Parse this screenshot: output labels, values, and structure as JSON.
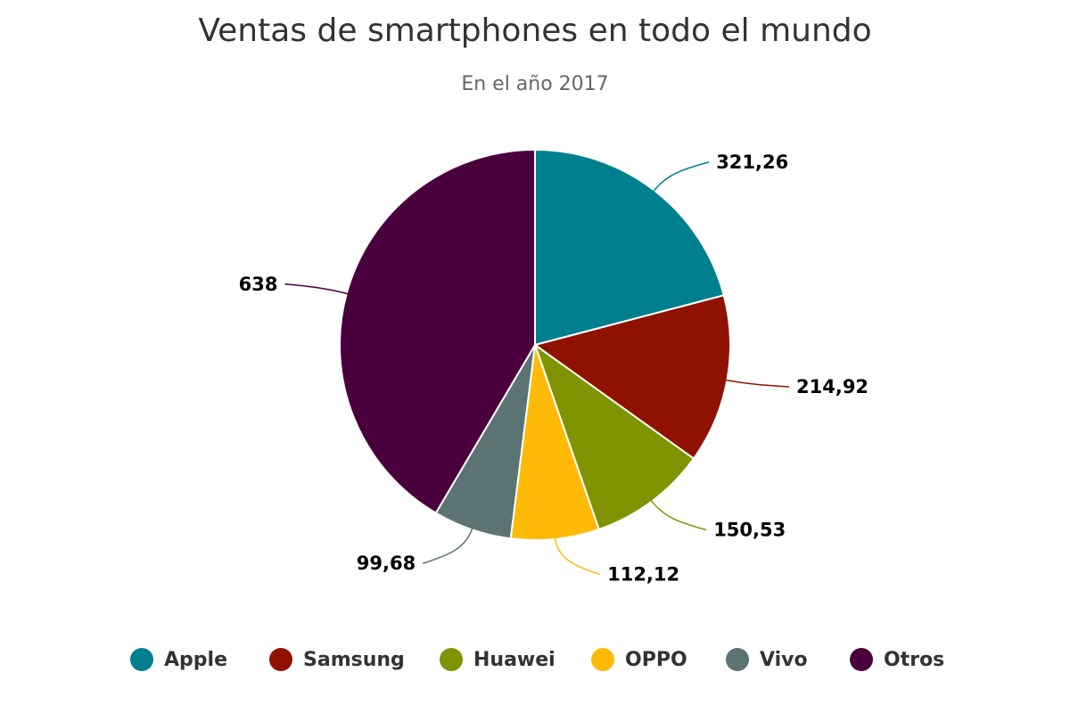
{
  "chart_data": {
    "type": "pie",
    "title": "Ventas de smartphones en todo el mundo",
    "subtitle": "En el año 2017",
    "categories": [
      "Apple",
      "Samsung",
      "Huawei",
      "OPPO",
      "Vivo",
      "Otros"
    ],
    "values": [
      321.26,
      214.92,
      150.53,
      112.12,
      99.68,
      638
    ],
    "labels": [
      "321,26",
      "214,92",
      "150,53",
      "112,12",
      "99,68",
      "638"
    ],
    "colors": [
      "#00808f",
      "#8f1200",
      "#7f9400",
      "#ffba08",
      "#5c7374",
      "#4a003d"
    ],
    "legend_position": "bottom"
  },
  "legend": {
    "items": [
      {
        "label": "Apple",
        "color": "#00808f"
      },
      {
        "label": "Samsung",
        "color": "#8f1200"
      },
      {
        "label": "Huawei",
        "color": "#7f9400"
      },
      {
        "label": "OPPO",
        "color": "#ffba08"
      },
      {
        "label": "Vivo",
        "color": "#5c7374"
      },
      {
        "label": "Otros",
        "color": "#4a003d"
      }
    ]
  }
}
